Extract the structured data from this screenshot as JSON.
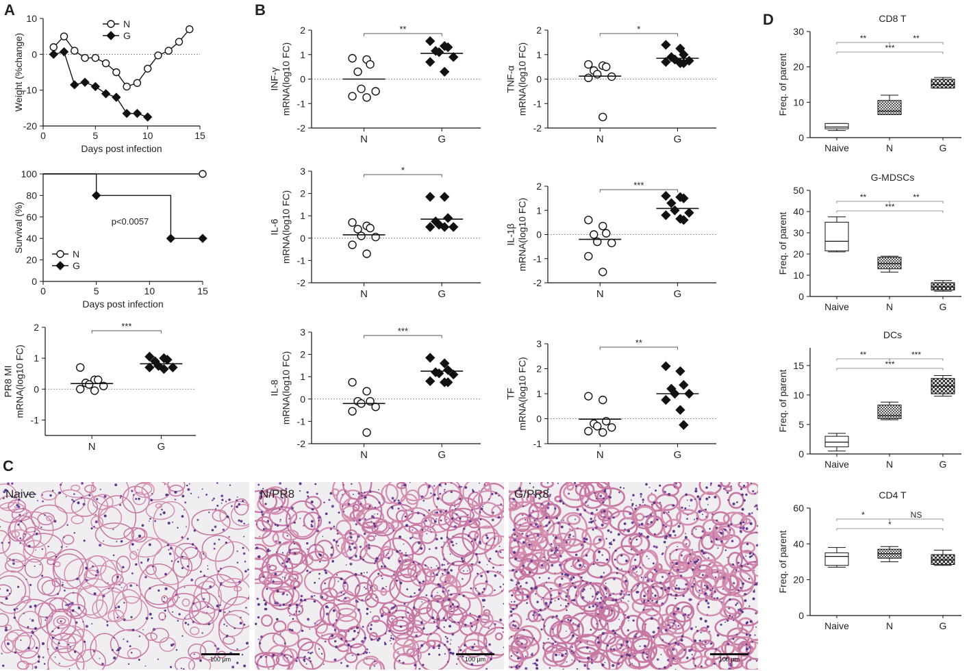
{
  "panel_letters": {
    "A": "A",
    "B": "B",
    "C": "C",
    "D": "D"
  },
  "chart_data": [
    {
      "id": "A1",
      "type": "line",
      "xlabel": "Days post infection",
      "ylabel": "Weight (%change)",
      "xlim": [
        0,
        15
      ],
      "ylim": [
        -20,
        10
      ],
      "xticks": [
        0,
        5,
        10,
        15
      ],
      "yticks": [
        -20,
        -10,
        0,
        10
      ],
      "legend": "top-center",
      "series": [
        {
          "name": "N",
          "marker": "open-circle",
          "x": [
            1,
            2,
            3,
            4,
            5,
            6,
            7,
            8,
            9,
            10,
            11,
            12,
            13,
            14
          ],
          "y": [
            2,
            5,
            1,
            -1,
            -1,
            -2.5,
            -5,
            -9,
            -8,
            -4,
            -0.3,
            1,
            3.5,
            7
          ]
        },
        {
          "name": "G",
          "marker": "filled-diamond",
          "x": [
            1,
            2,
            3,
            4,
            5,
            6,
            7,
            8,
            9,
            10
          ],
          "y": [
            0,
            0.7,
            -8.5,
            -7.8,
            -9,
            -11,
            -12,
            -16.5,
            -16.5,
            -17.5
          ]
        }
      ]
    },
    {
      "id": "A2",
      "type": "line",
      "xlabel": "Days post infection",
      "ylabel": "Survival (%)",
      "xlim": [
        0,
        15
      ],
      "ylim": [
        0,
        100
      ],
      "xticks": [
        0,
        5,
        10,
        15
      ],
      "yticks": [
        0,
        20,
        40,
        60,
        80,
        100
      ],
      "annotation": "p<0.0057",
      "legend": "bottom-left",
      "series": [
        {
          "name": "N",
          "marker": "open-circle",
          "x": [
            0,
            15
          ],
          "y": [
            100,
            100
          ]
        },
        {
          "name": "G",
          "marker": "filled-diamond",
          "x": [
            0,
            5,
            12,
            15
          ],
          "y": [
            100,
            80,
            40,
            40
          ]
        }
      ]
    },
    {
      "id": "A3",
      "type": "scatter",
      "ylabel": [
        "PR8 MI",
        "mRNA(log10 FC)"
      ],
      "categories": [
        "N",
        "G"
      ],
      "ylim": [
        -1.5,
        2
      ],
      "yticks": [
        -1,
        0,
        1,
        2
      ],
      "sig": "***",
      "series": [
        {
          "name": "N",
          "values": [
            0.7,
            0.3,
            0.3,
            0.2,
            0.15,
            0.1,
            0.0,
            -0.05
          ],
          "mean": 0.18
        },
        {
          "name": "G",
          "values": [
            1.05,
            1.0,
            0.95,
            0.9,
            0.75,
            0.7,
            0.7,
            0.65
          ],
          "mean": 0.82
        }
      ]
    },
    {
      "id": "B1",
      "type": "scatter",
      "ylabel": [
        "INF-γ",
        "mRNA(log10 FC)"
      ],
      "categories": [
        "N",
        "G"
      ],
      "ylim": [
        -2,
        2
      ],
      "yticks": [
        -2,
        -1,
        0,
        1,
        2
      ],
      "sig": "**",
      "series": [
        {
          "name": "N",
          "values": [
            0.85,
            0.8,
            0.6,
            0.3,
            -0.4,
            -0.5,
            -0.7,
            -0.75
          ],
          "mean": 0.0
        },
        {
          "name": "G",
          "values": [
            1.55,
            1.35,
            1.3,
            1.15,
            1.1,
            0.9,
            0.7,
            0.3
          ],
          "mean": 1.05
        }
      ]
    },
    {
      "id": "B2",
      "type": "scatter",
      "ylabel": [
        "TNF-α",
        "mRNA(log10 FC)"
      ],
      "categories": [
        "N",
        "G"
      ],
      "ylim": [
        -2,
        2
      ],
      "yticks": [
        -2,
        -1,
        0,
        1,
        2
      ],
      "sig": "*",
      "series": [
        {
          "name": "N",
          "values": [
            0.6,
            0.55,
            0.5,
            0.35,
            0.2,
            0.1,
            0.05,
            -1.55
          ],
          "mean": 0.12
        },
        {
          "name": "G",
          "values": [
            1.4,
            1.25,
            1.0,
            0.9,
            0.8,
            0.75,
            0.7,
            0.65,
            0.65
          ],
          "mean": 0.85
        }
      ]
    },
    {
      "id": "B3",
      "type": "scatter",
      "ylabel": [
        "IL-6",
        "mRNA(log10 FC)"
      ],
      "categories": [
        "N",
        "G"
      ],
      "ylim": [
        -2,
        3
      ],
      "yticks": [
        -2,
        -1,
        0,
        1,
        2,
        3
      ],
      "sig": "*",
      "series": [
        {
          "name": "N",
          "values": [
            0.7,
            0.55,
            0.45,
            0.4,
            0.1,
            0.05,
            -0.3,
            -0.7
          ],
          "mean": 0.15
        },
        {
          "name": "G",
          "values": [
            1.85,
            1.85,
            0.9,
            0.75,
            0.6,
            0.5,
            0.5,
            0.5
          ],
          "mean": 0.85
        }
      ]
    },
    {
      "id": "B4",
      "type": "scatter",
      "ylabel": [
        "IL-1β",
        "mRNA(log10 FC)"
      ],
      "categories": [
        "N",
        "G"
      ],
      "ylim": [
        -2,
        2
      ],
      "yticks": [
        -2,
        -1,
        0,
        1,
        2
      ],
      "sig": "***",
      "series": [
        {
          "name": "N",
          "values": [
            0.6,
            0.35,
            0.05,
            0.0,
            -0.3,
            -0.35,
            -0.9,
            -1.55
          ],
          "mean": -0.2
        },
        {
          "name": "G",
          "values": [
            1.6,
            1.55,
            1.5,
            1.3,
            1.0,
            0.9,
            0.8,
            0.65,
            0.6
          ],
          "mean": 1.08
        }
      ]
    },
    {
      "id": "B5",
      "type": "scatter",
      "ylabel": [
        "IL-8",
        "mRNA(log10 FC)"
      ],
      "categories": [
        "N",
        "G"
      ],
      "ylim": [
        -2,
        3
      ],
      "yticks": [
        -2,
        -1,
        0,
        1,
        2,
        3
      ],
      "sig": "***",
      "series": [
        {
          "name": "N",
          "values": [
            0.75,
            0.35,
            -0.1,
            -0.1,
            -0.2,
            -0.35,
            -0.55,
            -1.5
          ],
          "mean": -0.2
        },
        {
          "name": "G",
          "values": [
            1.85,
            1.6,
            1.3,
            1.2,
            1.15,
            1.1,
            0.8,
            0.75,
            0.75
          ],
          "mean": 1.25
        }
      ]
    },
    {
      "id": "B6",
      "type": "scatter",
      "ylabel": [
        "TF",
        "mRNA(log10 FC)"
      ],
      "categories": [
        "N",
        "G"
      ],
      "ylim": [
        -1,
        3
      ],
      "yticks": [
        -1,
        0,
        1,
        2,
        3
      ],
      "sig": "**",
      "series": [
        {
          "name": "N",
          "values": [
            0.9,
            0.75,
            -0.1,
            -0.2,
            -0.3,
            -0.35,
            -0.5,
            -0.55
          ],
          "mean": -0.02
        },
        {
          "name": "G",
          "values": [
            2.1,
            1.9,
            1.35,
            1.2,
            1.0,
            1.0,
            0.75,
            0.35,
            -0.25
          ],
          "mean": 1.0
        }
      ]
    },
    {
      "id": "D1",
      "type": "box",
      "title": "CD8 T",
      "ylabel": "Freq. of parent",
      "categories": [
        "Naive",
        "N",
        "G"
      ],
      "ylim": [
        0,
        30
      ],
      "yticks": [
        0,
        10,
        20,
        30
      ],
      "boxes": [
        {
          "min": 2,
          "q1": 2.5,
          "median": 3,
          "q3": 4,
          "max": 4
        },
        {
          "min": 6.5,
          "q1": 6.5,
          "median": 7.5,
          "q3": 10.5,
          "max": 12
        },
        {
          "min": 14,
          "q1": 14,
          "median": 15,
          "q3": 16.5,
          "max": 17
        }
      ],
      "brackets": [
        {
          "from": 0,
          "to": 1,
          "label": "**",
          "level": 0
        },
        {
          "from": 1,
          "to": 2,
          "label": "**",
          "level": 0
        },
        {
          "from": 0,
          "to": 2,
          "label": "***",
          "level": 1
        }
      ]
    },
    {
      "id": "D2",
      "type": "box",
      "title": "G-MDSCs",
      "ylabel": "Freq. of parent",
      "categories": [
        "Naive",
        "N",
        "G"
      ],
      "ylim": [
        0,
        50
      ],
      "yticks": [
        0,
        10,
        20,
        30,
        40,
        50
      ],
      "boxes": [
        {
          "min": 21,
          "q1": 21.5,
          "median": 26,
          "q3": 35,
          "max": 37.5
        },
        {
          "min": 11.5,
          "q1": 13,
          "median": 15.5,
          "q3": 18.5,
          "max": 19
        },
        {
          "min": 2.5,
          "q1": 3,
          "median": 4.5,
          "q3": 6.5,
          "max": 7.5
        }
      ],
      "brackets": [
        {
          "from": 0,
          "to": 1,
          "label": "**",
          "level": 0
        },
        {
          "from": 1,
          "to": 2,
          "label": "**",
          "level": 0
        },
        {
          "from": 0,
          "to": 2,
          "label": "***",
          "level": 1
        }
      ]
    },
    {
      "id": "D3",
      "type": "box",
      "title": "DCs",
      "ylabel": "Freq. of parent",
      "categories": [
        "Naive",
        "N",
        "G"
      ],
      "ylim": [
        0,
        18
      ],
      "yticks": [
        0,
        5,
        10,
        15
      ],
      "boxes": [
        {
          "min": 0.5,
          "q1": 1.2,
          "median": 2,
          "q3": 3,
          "max": 3.5
        },
        {
          "min": 5.8,
          "q1": 6,
          "median": 6.5,
          "q3": 8.3,
          "max": 8.8
        },
        {
          "min": 9.8,
          "q1": 10.2,
          "median": 11.5,
          "q3": 12.8,
          "max": 13.3
        }
      ],
      "brackets": [
        {
          "from": 0,
          "to": 1,
          "label": "**",
          "level": 0
        },
        {
          "from": 1,
          "to": 2,
          "label": "***",
          "level": 0
        },
        {
          "from": 0,
          "to": 2,
          "label": "***",
          "level": 1
        }
      ]
    },
    {
      "id": "D4",
      "type": "box",
      "title": "CD4 T",
      "ylabel": "Freq. of parent",
      "categories": [
        "Naive",
        "N",
        "G"
      ],
      "ylim": [
        0,
        60
      ],
      "yticks": [
        0,
        20,
        40,
        60
      ],
      "boxes": [
        {
          "min": 27,
          "q1": 28,
          "median": 33,
          "q3": 35,
          "max": 38
        },
        {
          "min": 30,
          "q1": 32,
          "median": 34.5,
          "q3": 37,
          "max": 38.5
        },
        {
          "min": 28,
          "q1": 28.5,
          "median": 31,
          "q3": 34,
          "max": 36.5
        }
      ],
      "brackets": [
        {
          "from": 0,
          "to": 1,
          "label": "*",
          "level": 0
        },
        {
          "from": 1,
          "to": 2,
          "label": "NS",
          "level": 0
        },
        {
          "from": 0,
          "to": 2,
          "label": "*",
          "level": 1
        }
      ]
    }
  ],
  "histology": {
    "scale_bar": "100 μm",
    "panels": [
      {
        "label": "Naive",
        "density": 0.25
      },
      {
        "label": "N/PR8",
        "density": 0.55
      },
      {
        "label": "G/PR8",
        "density": 0.75
      }
    ]
  }
}
